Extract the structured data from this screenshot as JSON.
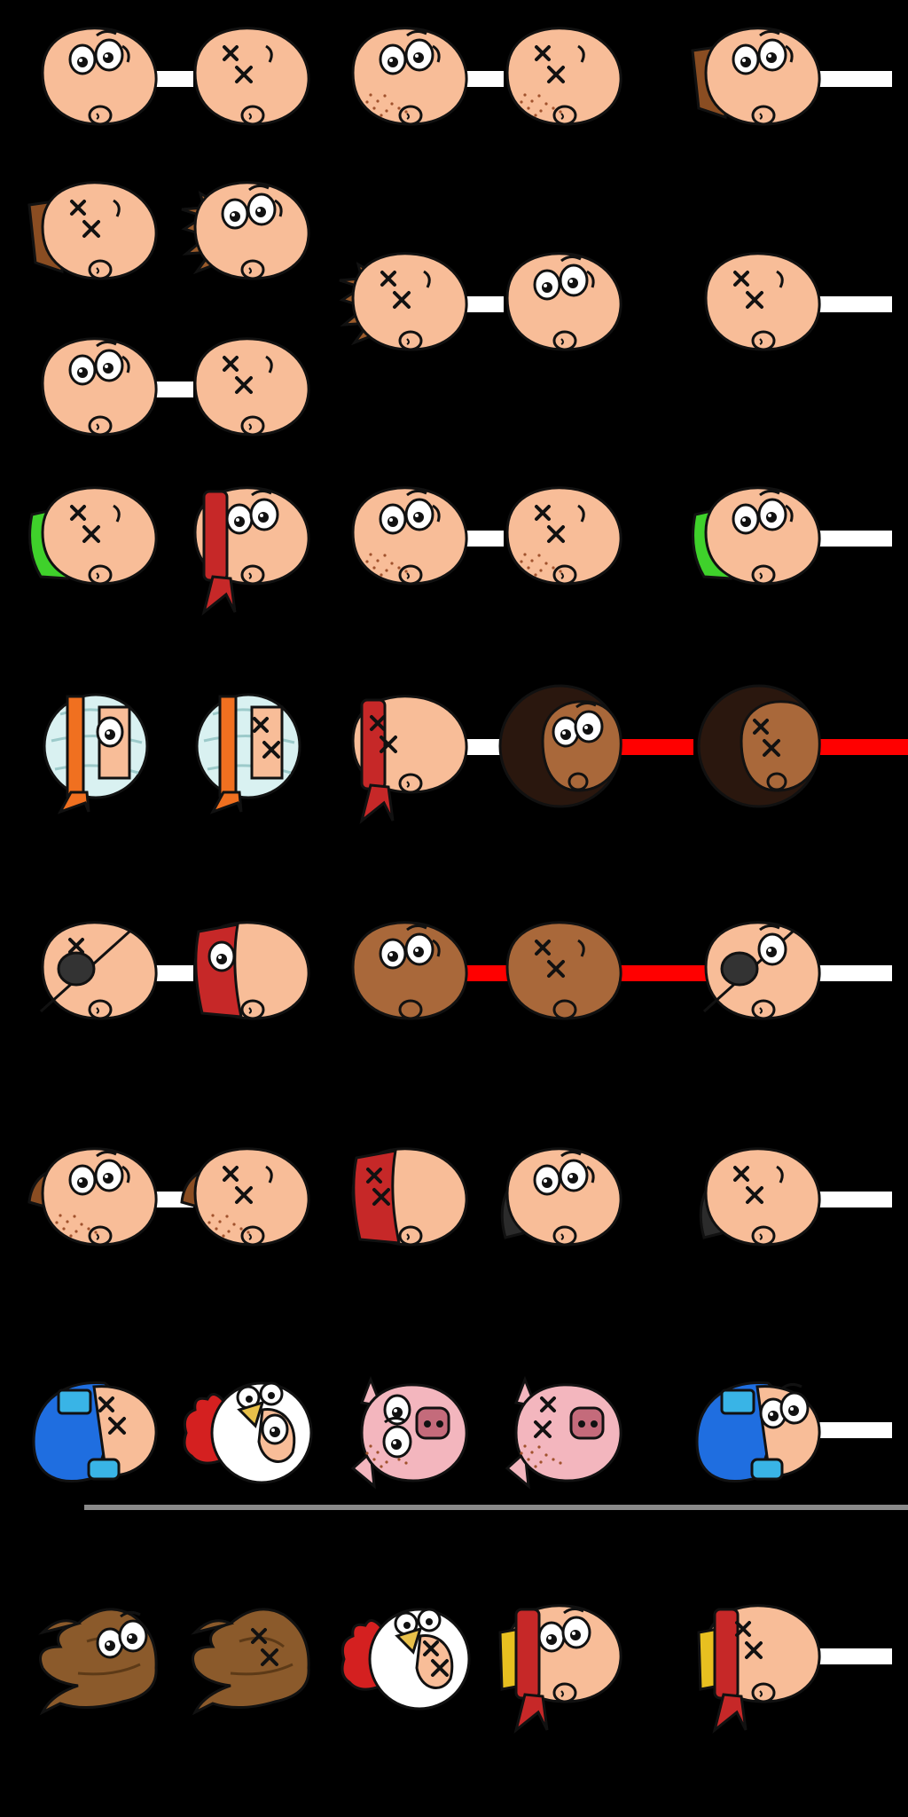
{
  "sheet": {
    "background": "#000000",
    "colors": {
      "skin": "#f8bd98",
      "skin_shade": "#e9a882",
      "dark_skin": "#a9683a",
      "hair_brown": "#8a4d22",
      "hair_spiky": "#9a5a2a",
      "hair_black": "#2b2b2b",
      "green_cap": "#3fd12b",
      "red_band": "#c62828",
      "orange_band": "#f07020",
      "bandage": "#d9f1f1",
      "afro": "#2a170e",
      "helmet_blue": "#1f6ee0",
      "helmet_dark": "#0f3a7a",
      "pig_pink": "#f3b6be",
      "pig_snout": "#c46b7b",
      "chicken_white": "#ffffff",
      "comb_red": "#d42020",
      "beak_yellow": "#e8c04a",
      "poop_brown": "#8b5a2b",
      "gold": "#e8c020",
      "bar_white": "#ffffff",
      "bar_red": "#ff0000",
      "divider_gray": "#8a8a8a"
    },
    "rows": [
      {
        "name": "row-1",
        "sprites": [
          {
            "head": "plain",
            "expr": "alive",
            "bar": "white"
          },
          {
            "head": "plain",
            "expr": "dead"
          },
          {
            "head": "freckled",
            "expr": "alive",
            "bar": "white"
          },
          {
            "head": "freckled",
            "expr": "dead"
          },
          {
            "head": "brown-hair",
            "expr": "alive",
            "bar": "white-long"
          }
        ]
      },
      {
        "name": "row-2",
        "sprites": [
          {
            "head": "brown-hair",
            "expr": "dead"
          },
          {
            "head": "spiky-hair",
            "expr": "alive"
          },
          {
            "head": "spiky-hair",
            "expr": "dead",
            "bar": "white"
          },
          {
            "head": "plain",
            "expr": "alive"
          },
          {
            "head": "plain",
            "expr": "dead",
            "bar": "white-long"
          }
        ]
      },
      {
        "name": "row-3",
        "sprites": [
          {
            "head": "plain",
            "expr": "alive",
            "bar": "white"
          },
          {
            "head": "plain",
            "expr": "dead"
          }
        ]
      },
      {
        "name": "row-4",
        "sprites": [
          {
            "head": "green-cap",
            "expr": "dead"
          },
          {
            "head": "red-bandana",
            "expr": "alive"
          },
          {
            "head": "freckled",
            "expr": "alive",
            "bar": "white"
          },
          {
            "head": "freckled",
            "expr": "dead"
          },
          {
            "head": "green-cap",
            "expr": "alive",
            "bar": "white-long"
          }
        ]
      },
      {
        "name": "row-5",
        "sprites": [
          {
            "head": "bandaged",
            "expr": "alive"
          },
          {
            "head": "bandaged",
            "expr": "dead"
          },
          {
            "head": "red-bandana",
            "expr": "dead",
            "bar": "white"
          },
          {
            "head": "afro",
            "expr": "alive",
            "bar": "red"
          },
          {
            "head": "afro",
            "expr": "dead",
            "bar": "red-long"
          }
        ]
      },
      {
        "name": "row-6",
        "sprites": [
          {
            "head": "eyepatch",
            "expr": "dead",
            "bar": "white"
          },
          {
            "head": "red-mask",
            "expr": "alive"
          },
          {
            "head": "dark-skin",
            "expr": "alive",
            "bar": "red"
          },
          {
            "head": "dark-skin",
            "expr": "dead",
            "bar": "red-long"
          },
          {
            "head": "eyepatch",
            "expr": "alive",
            "bar": "white-long"
          }
        ]
      },
      {
        "name": "row-7",
        "sprites": [
          {
            "head": "brown-cap",
            "expr": "alive",
            "bar": "white"
          },
          {
            "head": "brown-cap",
            "expr": "dead"
          },
          {
            "head": "red-mask",
            "expr": "dead"
          },
          {
            "head": "black-hair",
            "expr": "alive"
          },
          {
            "head": "black-hair",
            "expr": "dead",
            "bar": "white-long"
          }
        ]
      },
      {
        "name": "row-8",
        "sprites": [
          {
            "head": "blue-helmet",
            "expr": "dead"
          },
          {
            "head": "chicken",
            "expr": "alive"
          },
          {
            "head": "pig",
            "expr": "alive"
          },
          {
            "head": "pig",
            "expr": "dead"
          },
          {
            "head": "blue-helmet",
            "expr": "alive",
            "bar": "white-long"
          }
        ]
      },
      {
        "name": "row-9",
        "sprites": [
          {
            "head": "poop",
            "expr": "alive"
          },
          {
            "head": "poop",
            "expr": "dead"
          },
          {
            "head": "chicken",
            "expr": "dead"
          },
          {
            "head": "red-bandana-gold",
            "expr": "alive"
          },
          {
            "head": "red-bandana-gold",
            "expr": "dead",
            "bar": "white-long"
          }
        ]
      }
    ]
  }
}
